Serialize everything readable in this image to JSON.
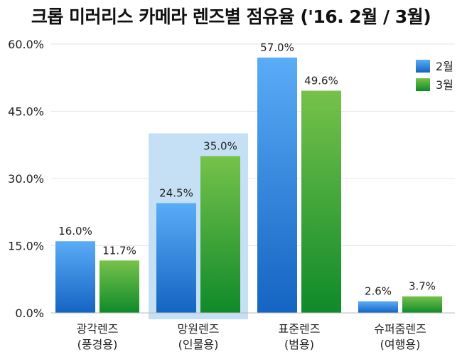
{
  "chart_data": {
    "type": "bar",
    "title": "크롭 미러리스 카메라 렌즈별 점유율 ('16. 2월 / 3월)",
    "xlabel": "",
    "ylabel": "",
    "categories": [
      [
        "광각렌즈",
        "(풍경용)"
      ],
      [
        "망원렌즈",
        "(인물용)"
      ],
      [
        "표준렌즈",
        "(범용)"
      ],
      [
        "슈퍼줌렌즈",
        "(여행용)"
      ]
    ],
    "series": [
      {
        "name": "2월",
        "values": [
          16.0,
          24.5,
          57.0,
          2.6
        ],
        "labels": [
          "16.0%",
          "24.5%",
          "57.0%",
          "2.6%"
        ],
        "color": "#3a8ee6"
      },
      {
        "name": "3월",
        "values": [
          11.7,
          35.0,
          49.6,
          3.7
        ],
        "labels": [
          "11.7%",
          "35.0%",
          "49.6%",
          "3.7%"
        ],
        "color": "#3cae3c"
      }
    ],
    "ylim": [
      0,
      60
    ],
    "yticks": [
      0,
      15,
      30,
      45,
      60
    ],
    "ytick_labels": [
      "0.0%",
      "15.0%",
      "30.0%",
      "45.0%",
      "60.0%"
    ],
    "grid": true,
    "legend_position": "top-right",
    "highlight_category": 1,
    "highlight_color": "#c5e0f4"
  }
}
